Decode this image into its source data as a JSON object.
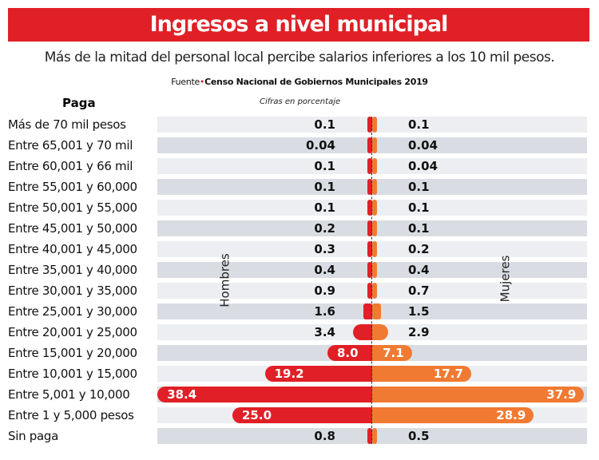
{
  "title": "Ingresos a nivel municipal",
  "subtitle": "Más de la mitad del personal local percibe salarios inferiores a los 10 mil pesos.",
  "source_label": "Fuente",
  "source": "Censo Nacional de Gobiernos Municipales 2019",
  "chart_data": {
    "type": "bar",
    "orientation": "horizontal-diverging",
    "category_header": "Paga",
    "note": "Cifras en porcentaje",
    "categories": [
      "Más de 70 mil pesos",
      "Entre 65,001 y 70 mil",
      "Entre 60,001 y 66 mil",
      "Entre 55,001 y 60,000",
      "Entre 50,001 y 55,000",
      "Entre 45,001 y 50,000",
      "Entre 40,001 y 45,000",
      "Entre 35,001 y 40,000",
      "Entre 30,001 y 35,000",
      "Entre 25,001 y 30,000",
      "Entre 20,001 y 25,000",
      "Entre 15,001 y 20,000",
      "Entre 10,001 y 15,000",
      "Entre 5,001 y 10,000",
      "Entre 1 y 5,000 pesos",
      "Sin paga"
    ],
    "series": [
      {
        "name": "Hombres",
        "color": "#e02026",
        "values": [
          "0.1",
          "0.04",
          "0.1",
          "0.1",
          "0.1",
          "0.2",
          "0.3",
          "0.4",
          "0.9",
          "1.6",
          "3.4",
          "8.0",
          "19.2",
          "38.4",
          "25.0",
          "0.8"
        ]
      },
      {
        "name": "Mujeres",
        "color": "#f07a32",
        "values": [
          "0.1",
          "0.04",
          "0.04",
          "0.1",
          "0.1",
          "0.1",
          "0.2",
          "0.4",
          "0.7",
          "1.5",
          "2.9",
          "7.1",
          "17.7",
          "37.9",
          "28.9",
          "0.5"
        ]
      }
    ],
    "row_colors": [
      "#eceef1",
      "#d9dde3"
    ]
  }
}
